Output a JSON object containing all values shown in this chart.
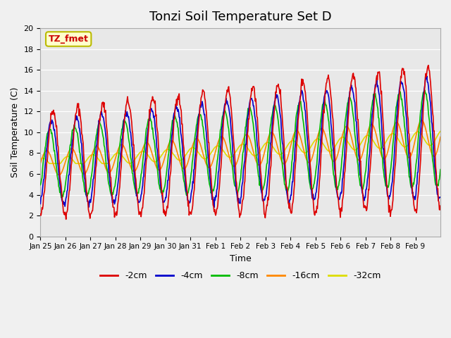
{
  "title": "Tonzi Soil Temperature Set D",
  "xlabel": "Time",
  "ylabel": "Soil Temperature (C)",
  "ylim": [
    0,
    20
  ],
  "n_days": 16,
  "xtick_labels": [
    "Jan 25",
    "Jan 26",
    "Jan 27",
    "Jan 28",
    "Jan 29",
    "Jan 30",
    "Jan 31",
    "Feb 1",
    "Feb 2",
    "Feb 3",
    "Feb 4",
    "Feb 5",
    "Feb 6",
    "Feb 7",
    "Feb 8",
    "Feb 9"
  ],
  "annotation_text": "TZ_fmet",
  "annotation_color": "#cc0000",
  "annotation_bg": "#ffffcc",
  "annotation_border": "#bbbb00",
  "fig_bg_color": "#f0f0f0",
  "plot_bg_color": "#e8e8e8",
  "colors": {
    "2cm": "#dd0000",
    "4cm": "#0000cc",
    "8cm": "#00bb00",
    "16cm": "#ff8800",
    "32cm": "#dddd00"
  },
  "legend_labels": [
    "-2cm",
    "-4cm",
    "-8cm",
    "-16cm",
    "-32cm"
  ],
  "title_fontsize": 13,
  "axis_label_fontsize": 9,
  "tick_fontsize": 8,
  "line_width": 1.2,
  "yticks": [
    0,
    2,
    4,
    6,
    8,
    10,
    12,
    14,
    16,
    18,
    20
  ]
}
